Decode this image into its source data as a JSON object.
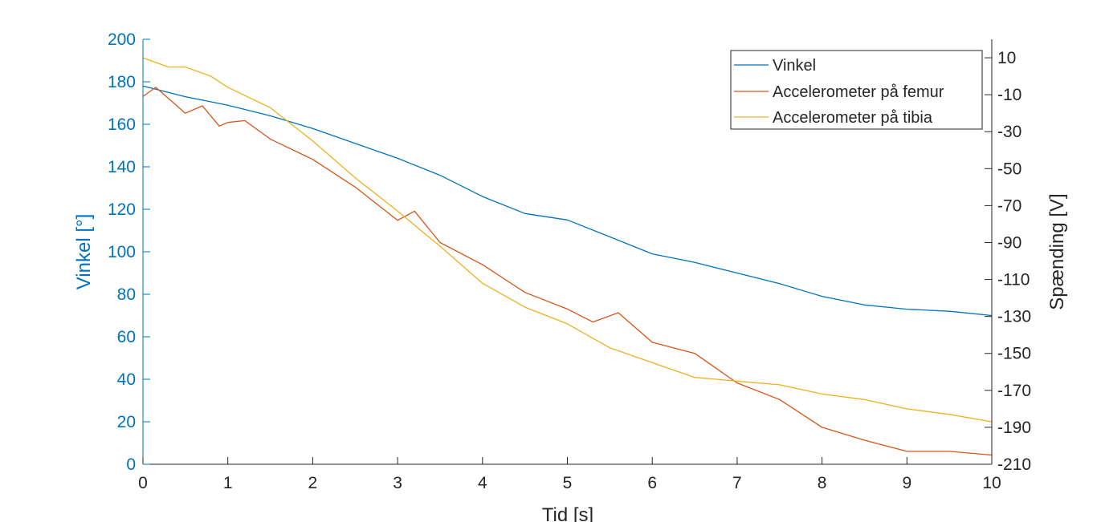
{
  "chart_data": {
    "type": "line",
    "title": "",
    "xlabel": "Tid [s]",
    "ylabel_left": "Vinkel [°]",
    "ylabel_right": "Spænding [V]",
    "xlim": [
      0,
      10
    ],
    "ylim_left": [
      0,
      200
    ],
    "ylim_right": [
      -210,
      20
    ],
    "x_ticks": [
      0,
      1,
      2,
      3,
      4,
      5,
      6,
      7,
      8,
      9,
      10
    ],
    "y_ticks_left": [
      0,
      20,
      40,
      60,
      80,
      100,
      120,
      140,
      160,
      180,
      200
    ],
    "y_ticks_right": [
      -210,
      -190,
      -170,
      -150,
      -130,
      -110,
      -90,
      -70,
      -50,
      -30,
      -10,
      10
    ],
    "grid": false,
    "legend_position": "top-right",
    "colors": {
      "left_axis": "#0072BD",
      "right_axis": "#262626"
    },
    "series": [
      {
        "name": "Vinkel",
        "axis": "left",
        "color": "#0072BD",
        "x": [
          0,
          0.5,
          1,
          1.5,
          2,
          2.5,
          3,
          3.5,
          4,
          4.5,
          5,
          5.5,
          6,
          6.5,
          7,
          7.5,
          8,
          8.5,
          9,
          9.5,
          10
        ],
        "y": [
          178,
          173,
          169,
          164,
          158,
          151,
          144,
          136,
          126,
          118,
          115,
          107,
          99,
          95,
          90,
          85,
          79,
          75,
          73,
          72,
          70
        ]
      },
      {
        "name": "Accelerometer på femur",
        "axis": "right",
        "color": "#D95319",
        "x": [
          0,
          0.15,
          0.5,
          0.7,
          0.9,
          1,
          1.2,
          1.5,
          2,
          2.5,
          3,
          3.2,
          3.5,
          4,
          4.5,
          5,
          5.3,
          5.6,
          6,
          6.5,
          7,
          7.5,
          8,
          8.5,
          9,
          9.5,
          10
        ],
        "y": [
          -11,
          -6,
          -20,
          -16,
          -27,
          -25,
          -24,
          -34,
          -45,
          -60,
          -78,
          -73,
          -90,
          -102,
          -117,
          -126,
          -133,
          -128,
          -144,
          -150,
          -166,
          -175,
          -190,
          -197,
          -203,
          -203,
          -205
        ]
      },
      {
        "name": "Accelerometer på tibia",
        "axis": "right",
        "color": "#EDB120",
        "x": [
          0,
          0.3,
          0.5,
          0.8,
          1,
          1.5,
          2,
          2.5,
          3,
          3.5,
          4,
          4.5,
          5,
          5.5,
          6,
          6.5,
          7,
          7.5,
          8,
          8.5,
          9,
          9.5,
          10
        ],
        "y": [
          10,
          5,
          5,
          0,
          -6,
          -17,
          -35,
          -55,
          -73,
          -92,
          -112,
          -125,
          -134,
          -147,
          -155,
          -163,
          -165,
          -167,
          -172,
          -175,
          -180,
          -183,
          -187
        ]
      }
    ]
  }
}
